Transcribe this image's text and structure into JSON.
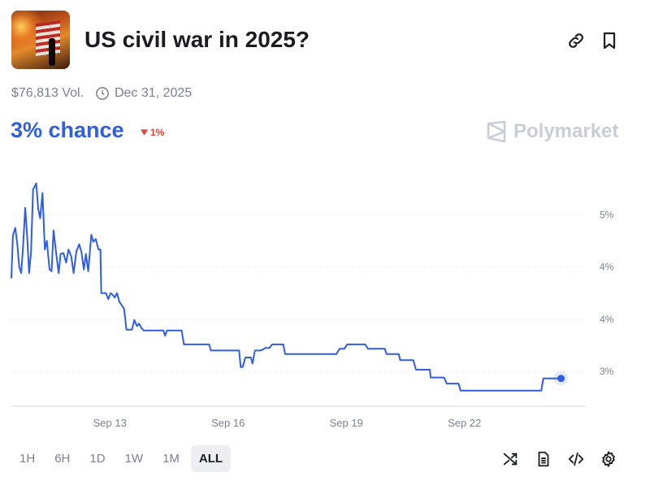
{
  "header": {
    "title": "US civil war in 2025?",
    "volume": "$76,813 Vol.",
    "end_date": "Dec 31, 2025"
  },
  "odds": {
    "chance": "3% chance",
    "delta": "1%",
    "delta_direction": "down",
    "delta_color": "#e0443a"
  },
  "brand": {
    "name": "Polymarket"
  },
  "colors": {
    "accent": "#2f5ee0",
    "line": "#2f5ee0"
  },
  "icons": [
    "link-icon",
    "bookmark-icon",
    "clock-icon",
    "shuffle-icon",
    "document-icon",
    "code-icon",
    "gear-icon"
  ],
  "ranges": {
    "options": [
      "1H",
      "6H",
      "1D",
      "1W",
      "1M",
      "ALL"
    ],
    "selected": "ALL"
  },
  "chart_data": {
    "type": "line",
    "title": "",
    "xlabel": "",
    "ylabel": "",
    "x_ticks": [
      "Sep 13",
      "Sep 16",
      "Sep 19",
      "Sep 22"
    ],
    "y_ticks": [
      "3%",
      "4%",
      "4%",
      "5%"
    ],
    "y_tick_values": [
      3.0,
      3.6,
      4.2,
      4.8
    ],
    "ylim": [
      2.6,
      5.4
    ],
    "xlim": [
      0,
      14.6
    ],
    "grid": true,
    "series": [
      {
        "points": [
          [
            0.0,
            4.07
          ],
          [
            0.04,
            4.56
          ],
          [
            0.1,
            4.65
          ],
          [
            0.15,
            4.46
          ],
          [
            0.2,
            4.2
          ],
          [
            0.25,
            4.13
          ],
          [
            0.3,
            4.45
          ],
          [
            0.35,
            4.88
          ],
          [
            0.4,
            4.56
          ],
          [
            0.45,
            4.13
          ],
          [
            0.5,
            4.37
          ],
          [
            0.55,
            5.09
          ],
          [
            0.63,
            5.16
          ],
          [
            0.68,
            4.87
          ],
          [
            0.73,
            4.76
          ],
          [
            0.79,
            5.05
          ],
          [
            0.85,
            4.4
          ],
          [
            0.9,
            4.5
          ],
          [
            0.97,
            4.17
          ],
          [
            1.02,
            4.15
          ],
          [
            1.07,
            4.62
          ],
          [
            1.12,
            4.42
          ],
          [
            1.2,
            4.13
          ],
          [
            1.25,
            4.35
          ],
          [
            1.32,
            4.36
          ],
          [
            1.39,
            4.25
          ],
          [
            1.45,
            4.4
          ],
          [
            1.52,
            4.32
          ],
          [
            1.58,
            4.13
          ],
          [
            1.65,
            4.38
          ],
          [
            1.72,
            4.46
          ],
          [
            1.78,
            4.37
          ],
          [
            1.84,
            4.17
          ],
          [
            1.89,
            4.35
          ],
          [
            1.95,
            4.15
          ],
          [
            2.03,
            4.57
          ],
          [
            2.08,
            4.49
          ],
          [
            2.14,
            4.52
          ],
          [
            2.21,
            4.4
          ],
          [
            2.26,
            4.4
          ],
          [
            2.28,
            3.9
          ],
          [
            2.4,
            3.9
          ],
          [
            2.46,
            3.83
          ],
          [
            2.52,
            3.9
          ],
          [
            2.57,
            3.88
          ],
          [
            2.62,
            3.85
          ],
          [
            2.68,
            3.9
          ],
          [
            2.74,
            3.8
          ],
          [
            2.86,
            3.72
          ],
          [
            2.92,
            3.48
          ],
          [
            3.06,
            3.48
          ],
          [
            3.12,
            3.59
          ],
          [
            3.19,
            3.52
          ],
          [
            3.24,
            3.55
          ],
          [
            3.3,
            3.5
          ],
          [
            3.36,
            3.47
          ],
          [
            3.86,
            3.47
          ],
          [
            3.9,
            3.41
          ],
          [
            3.95,
            3.47
          ],
          [
            4.32,
            3.47
          ],
          [
            4.38,
            3.31
          ],
          [
            5.02,
            3.31
          ],
          [
            5.06,
            3.24
          ],
          [
            5.78,
            3.24
          ],
          [
            5.82,
            3.05
          ],
          [
            5.87,
            3.05
          ],
          [
            5.94,
            3.16
          ],
          [
            6.08,
            3.16
          ],
          [
            6.12,
            3.09
          ],
          [
            6.18,
            3.24
          ],
          [
            6.27,
            3.24
          ],
          [
            6.33,
            3.24
          ],
          [
            6.45,
            3.27
          ],
          [
            6.55,
            3.27
          ],
          [
            6.62,
            3.31
          ],
          [
            6.9,
            3.31
          ],
          [
            6.95,
            3.2
          ],
          [
            8.25,
            3.2
          ],
          [
            8.33,
            3.26
          ],
          [
            8.45,
            3.26
          ],
          [
            8.52,
            3.31
          ],
          [
            8.98,
            3.31
          ],
          [
            9.05,
            3.26
          ],
          [
            9.48,
            3.26
          ],
          [
            9.52,
            3.2
          ],
          [
            9.83,
            3.2
          ],
          [
            9.87,
            3.13
          ],
          [
            10.2,
            3.13
          ],
          [
            10.27,
            3.02
          ],
          [
            10.62,
            3.02
          ],
          [
            10.64,
            2.93
          ],
          [
            10.98,
            2.93
          ],
          [
            11.05,
            2.86
          ],
          [
            11.35,
            2.86
          ],
          [
            11.4,
            2.78
          ],
          [
            13.45,
            2.78
          ],
          [
            13.5,
            2.92
          ],
          [
            13.95,
            2.92
          ]
        ],
        "current": [
          13.95,
          2.92
        ]
      }
    ]
  }
}
